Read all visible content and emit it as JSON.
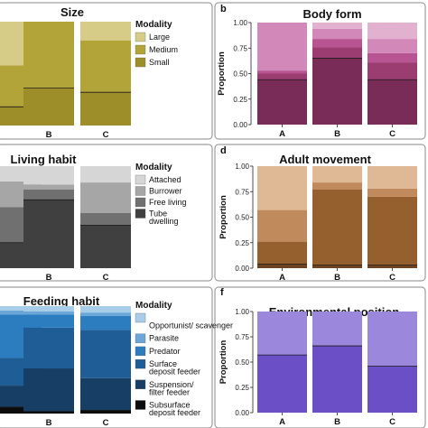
{
  "chart_data": [
    {
      "id": "size",
      "type": "bar",
      "stacked": true,
      "letter": "",
      "title": "Size",
      "ylabel": "",
      "categories": [
        "",
        "B",
        "C"
      ],
      "ylim": [
        0,
        1
      ],
      "yticks": [],
      "legend_title": "Modality",
      "series": [
        {
          "name": "Small",
          "color": "#9e8e2a",
          "values": [
            0.18,
            0.36,
            0.32
          ]
        },
        {
          "name": "Medium",
          "color": "#b3a43a",
          "values": [
            0.4,
            0.64,
            0.5
          ]
        },
        {
          "name": "Large",
          "color": "#d6cc88",
          "values": [
            0.42,
            0.0,
            0.18
          ]
        }
      ]
    },
    {
      "id": "body",
      "type": "bar",
      "stacked": true,
      "letter": "b",
      "title": "Body form",
      "ylabel": "Proportion",
      "categories": [
        "A",
        "B",
        "C"
      ],
      "ylim": [
        0,
        1
      ],
      "yticks": [
        "0.00",
        "0.25",
        "0.50",
        "0.75",
        "1.00"
      ],
      "legend_title": "",
      "series": [
        {
          "name": "",
          "color": "#7a2c58",
          "values": [
            0.44,
            0.65,
            0.44
          ]
        },
        {
          "name": "",
          "color": "#9c3d72",
          "values": [
            0.06,
            0.11,
            0.17
          ]
        },
        {
          "name": "",
          "color": "#b85492",
          "values": [
            0.03,
            0.08,
            0.09
          ]
        },
        {
          "name": "",
          "color": "#d388ba",
          "values": [
            0.47,
            0.1,
            0.14
          ]
        },
        {
          "name": "",
          "color": "#e3b1d0",
          "values": [
            0.0,
            0.06,
            0.16
          ]
        }
      ]
    },
    {
      "id": "living",
      "type": "bar",
      "stacked": true,
      "letter": "",
      "title": "Living habit",
      "ylabel": "",
      "categories": [
        "",
        "B",
        "C"
      ],
      "ylim": [
        0,
        1
      ],
      "yticks": [],
      "legend_title": "Modality",
      "series": [
        {
          "name": "Tube dwelling",
          "color": "#404040",
          "values": [
            0.25,
            0.67,
            0.42
          ]
        },
        {
          "name": "Free living",
          "color": "#707070",
          "values": [
            0.35,
            0.1,
            0.12
          ]
        },
        {
          "name": "Burrower",
          "color": "#a6a6a6",
          "values": [
            0.25,
            0.05,
            0.3
          ]
        },
        {
          "name": "Attached",
          "color": "#d6d6d6",
          "values": [
            0.15,
            0.18,
            0.16
          ]
        }
      ]
    },
    {
      "id": "adult",
      "type": "bar",
      "stacked": true,
      "letter": "d",
      "title": "Adult movement",
      "ylabel": "Proportion",
      "categories": [
        "A",
        "B",
        "C"
      ],
      "ylim": [
        0,
        1
      ],
      "yticks": [
        "0.00",
        "0.25",
        "0.50",
        "0.75",
        "1.00"
      ],
      "legend_title": "",
      "series": [
        {
          "name": "",
          "color": "#6e4220",
          "values": [
            0.04,
            0.03,
            0.03
          ]
        },
        {
          "name": "",
          "color": "#96602e",
          "values": [
            0.22,
            0.74,
            0.67
          ]
        },
        {
          "name": "",
          "color": "#c18a5c",
          "values": [
            0.31,
            0.07,
            0.08
          ]
        },
        {
          "name": "",
          "color": "#dfb896",
          "values": [
            0.43,
            0.16,
            0.22
          ]
        }
      ]
    },
    {
      "id": "feeding",
      "type": "bar",
      "stacked": true,
      "letter": "",
      "title": "Feeding habit",
      "ylabel": "",
      "categories": [
        "",
        "B",
        "C"
      ],
      "ylim": [
        0,
        1
      ],
      "yticks": [],
      "legend_title": "Modality",
      "series": [
        {
          "name": "Subsurface deposit feeder",
          "color": "#0c0c0c",
          "values": [
            0.06,
            0.02,
            0.03
          ]
        },
        {
          "name": "Suspension/ filter feeder",
          "color": "#173f66",
          "values": [
            0.2,
            0.4,
            0.3
          ]
        },
        {
          "name": "Surface deposit feeder",
          "color": "#1f5d96",
          "values": [
            0.26,
            0.38,
            0.45
          ]
        },
        {
          "name": "Predator",
          "color": "#2c7dc0",
          "values": [
            0.4,
            0.12,
            0.13
          ]
        },
        {
          "name": "Parasite",
          "color": "#6aa6d8",
          "values": [
            0.04,
            0.03,
            0.03
          ]
        },
        {
          "name": "Opportunist/ scavenger",
          "color": "#a8cde9",
          "values": [
            0.04,
            0.05,
            0.06
          ]
        }
      ]
    },
    {
      "id": "env",
      "type": "bar",
      "stacked": true,
      "letter": "f",
      "title": "Environmental position",
      "ylabel": "Proportion",
      "categories": [
        "A",
        "B",
        "C"
      ],
      "ylim": [
        0,
        1
      ],
      "yticks": [
        "0.00",
        "0.25",
        "0.50",
        "0.75",
        "1.00"
      ],
      "legend_title": "",
      "series": [
        {
          "name": "",
          "color": "#6b4fc6",
          "values": [
            0.57,
            0.66,
            0.46
          ]
        },
        {
          "name": "",
          "color": "#9b88dc",
          "values": [
            0.43,
            0.34,
            0.54
          ]
        }
      ]
    }
  ]
}
